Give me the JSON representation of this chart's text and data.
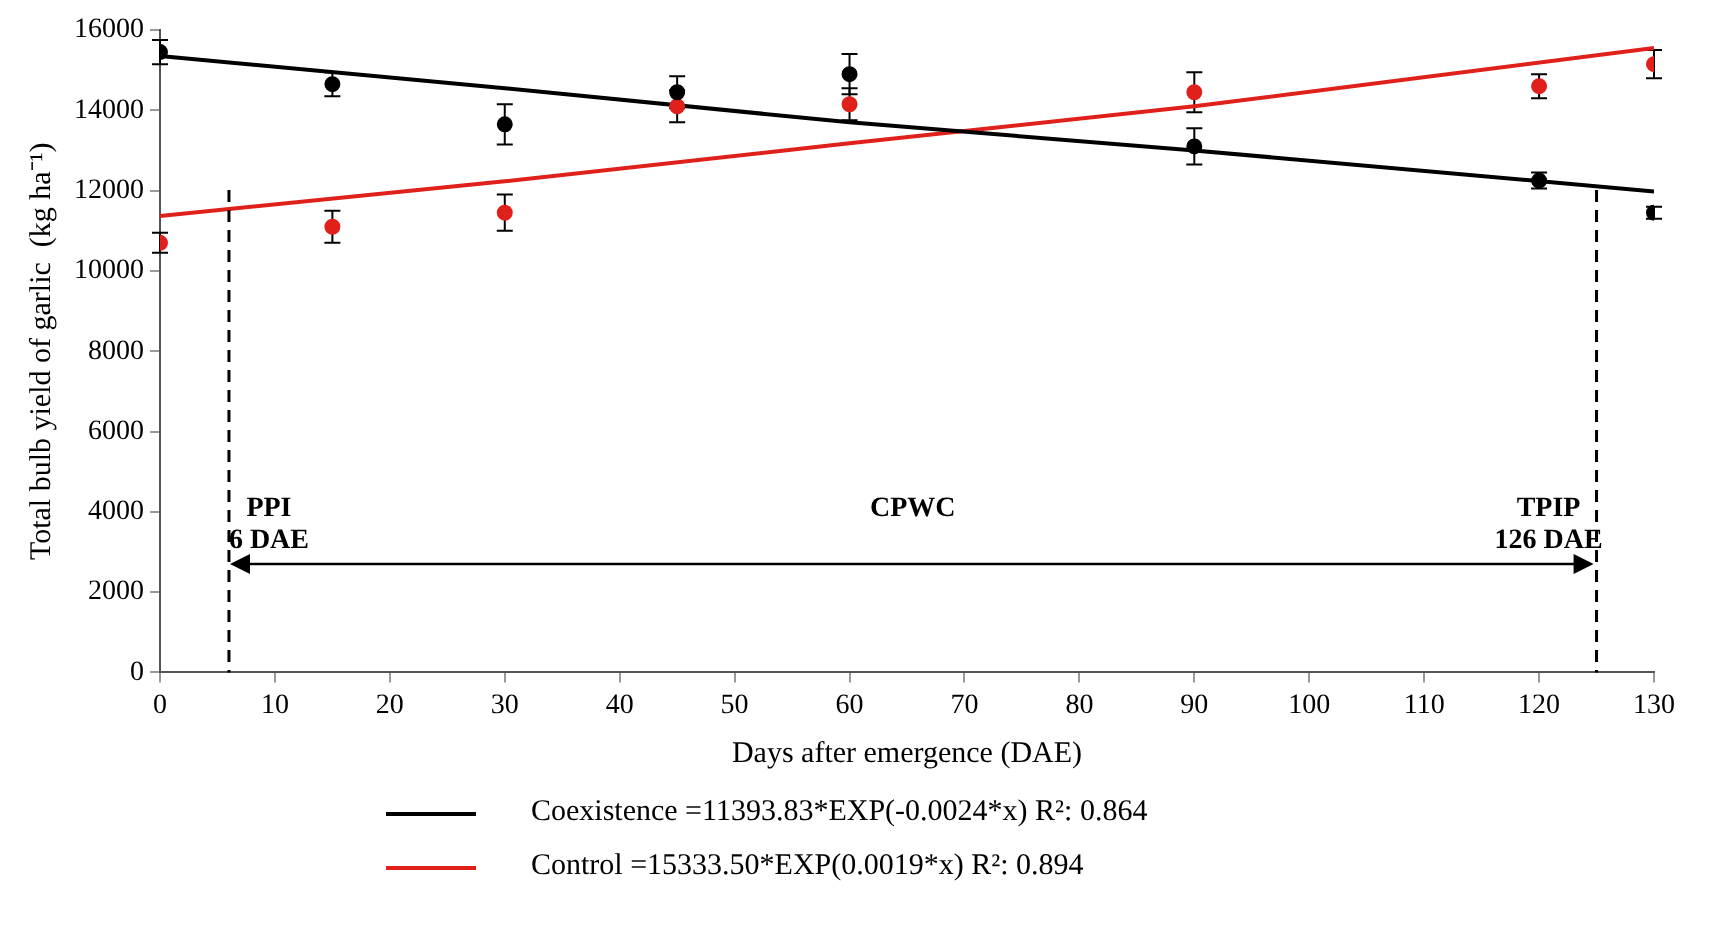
{
  "chart_data": {
    "type": "scatter",
    "xlabel": "Days after emergence (DAE)",
    "ylabel": "Total bulb yield of garlic  (kg ha⁻¹)",
    "x": [
      0,
      15,
      30,
      45,
      60,
      90,
      120,
      130
    ],
    "series": [
      {
        "color": "#000000",
        "values": [
          15450,
          14650,
          13650,
          14450,
          14900,
          13100,
          12250,
          11450
        ],
        "errors": [
          300,
          300,
          500,
          400,
          500,
          450,
          200,
          150
        ]
      },
      {
        "color": "#e0201b",
        "values": [
          10700,
          11100,
          11450,
          14100,
          14150,
          14450,
          14600,
          15150
        ],
        "errors": [
          250,
          400,
          450,
          400,
          400,
          500,
          300,
          350
        ]
      },
      {
        "type": "line",
        "name": "Coexistence =11393.83*EXP(-0.0024*x)  R²: 0.864",
        "color": "#000000",
        "x": [
          0,
          30,
          60,
          90,
          130
        ],
        "values": [
          15350,
          14550,
          13700,
          13000,
          11980
        ]
      },
      {
        "type": "line",
        "name": "Control =15333.50*EXP(0.0019*x) R²: 0.894",
        "color": "#e0201b",
        "x": [
          0,
          30,
          60,
          90,
          130
        ],
        "values": [
          11370,
          12230,
          13180,
          14100,
          15550
        ]
      }
    ],
    "xlim": [
      0,
      130
    ],
    "xticks": [
      0,
      10,
      20,
      30,
      40,
      50,
      60,
      70,
      80,
      90,
      100,
      110,
      120,
      130
    ],
    "ylim": [
      0,
      16000
    ],
    "yticks": [
      0,
      2000,
      4000,
      6000,
      8000,
      10000,
      12000,
      14000,
      16000
    ],
    "ref_lines": [
      {
        "axis": "x",
        "value": 6,
        "label": "PPI\n6 DAE",
        "line_style": "dashed",
        "color": "#000000"
      },
      {
        "axis": "x",
        "value": 125,
        "label": "TPIP\n126 DAE",
        "line_style": "dashed",
        "color": "#000000"
      }
    ],
    "annotations": [
      "CPWC"
    ],
    "grid": false,
    "legend": "bottom"
  }
}
